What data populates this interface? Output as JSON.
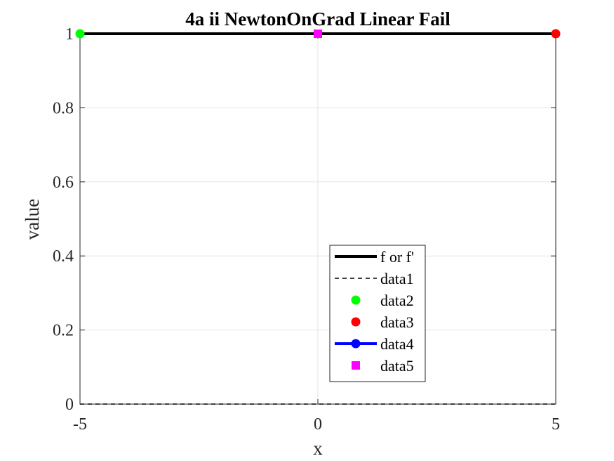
{
  "chart_data": {
    "type": "line",
    "title": "4a ii NewtonOnGrad Linear Fail",
    "xlabel": "x",
    "ylabel": "value",
    "xlim": [
      -5,
      5
    ],
    "ylim": [
      0,
      1
    ],
    "xticks": [
      -5,
      0,
      5
    ],
    "xtick_labels": [
      "-5",
      "0",
      "5"
    ],
    "yticks": [
      0,
      0.2,
      0.4,
      0.6,
      0.8,
      1
    ],
    "ytick_labels": [
      "0",
      "0.2",
      "0.4",
      "0.6",
      "0.8",
      "1"
    ],
    "grid": true,
    "legend_position": "bottom-center",
    "series": [
      {
        "name": "f or f'",
        "style": "solid-line",
        "color": "#000000",
        "points": [
          [
            -5,
            1
          ],
          [
            5,
            1
          ]
        ]
      },
      {
        "name": "data1",
        "style": "dashed-line",
        "color": "#404040",
        "points": [
          [
            -5,
            0
          ],
          [
            5,
            0
          ]
        ]
      },
      {
        "name": "data2",
        "style": "circle-marker",
        "color": "#00ff00",
        "points": [
          [
            -5,
            1
          ]
        ]
      },
      {
        "name": "data3",
        "style": "circle-marker",
        "color": "#ff0000",
        "points": [
          [
            5,
            1
          ]
        ]
      },
      {
        "name": "data4",
        "style": "line-with-circle",
        "color": "#0000ff",
        "points": []
      },
      {
        "name": "data5",
        "style": "square-marker",
        "color": "#ff00ff",
        "points": [
          [
            0,
            1
          ]
        ]
      }
    ]
  }
}
